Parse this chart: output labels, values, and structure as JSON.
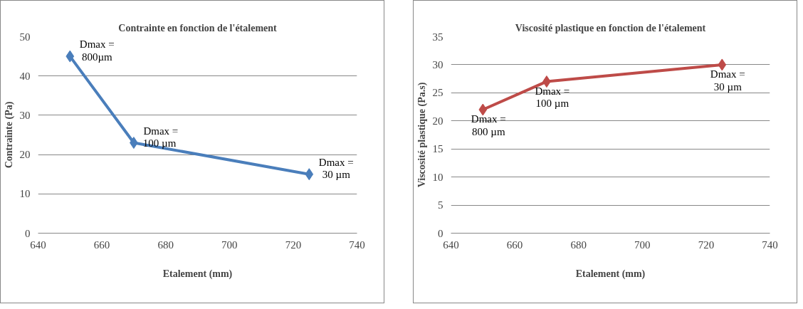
{
  "chart_data": [
    {
      "type": "line",
      "title": "Contrainte en fonction de l'étalement",
      "xlabel": "Etalement (mm)",
      "ylabel": "Contrainte (Pa)",
      "x": [
        650,
        670,
        725
      ],
      "series": [
        {
          "color": "#4a7ebb",
          "values": [
            45,
            23,
            15
          ]
        }
      ],
      "xlim": [
        640,
        740
      ],
      "xticks": [
        640,
        660,
        680,
        700,
        720,
        740
      ],
      "ylim": [
        0,
        50
      ],
      "yticks": [
        0,
        10,
        20,
        30,
        40,
        50
      ],
      "grid": "y",
      "marker": "diamond",
      "line_style": "solid",
      "annotations": [
        {
          "text": "Dmax =\n800µm",
          "x": 650,
          "y": 45
        },
        {
          "text": "Dmax =\n100  µm",
          "x": 670,
          "y": 23
        },
        {
          "text": "Dmax =\n30 µm",
          "x": 725,
          "y": 15
        }
      ]
    },
    {
      "type": "line",
      "title": "Viscosité plastique en fonction de l'étalement",
      "xlabel": "Etalement (mm)",
      "ylabel": "Viscosité plastique (Pa.s)",
      "x": [
        650,
        670,
        725
      ],
      "series": [
        {
          "color": "#be4b48",
          "values": [
            22,
            27,
            30
          ]
        }
      ],
      "xlim": [
        640,
        740
      ],
      "xticks": [
        640,
        660,
        680,
        700,
        720,
        740
      ],
      "ylim": [
        0,
        35
      ],
      "yticks": [
        0,
        5,
        10,
        15,
        20,
        25,
        30,
        35
      ],
      "grid": "y",
      "marker": "diamond",
      "line_style": "solid",
      "annotations": [
        {
          "text": "Dmax =\n800 µm",
          "x": 650,
          "y": 22
        },
        {
          "text": "Dmax =\n100 µm",
          "x": 670,
          "y": 27
        },
        {
          "text": "Dmax =\n30 µm",
          "x": 725,
          "y": 30
        }
      ]
    }
  ]
}
